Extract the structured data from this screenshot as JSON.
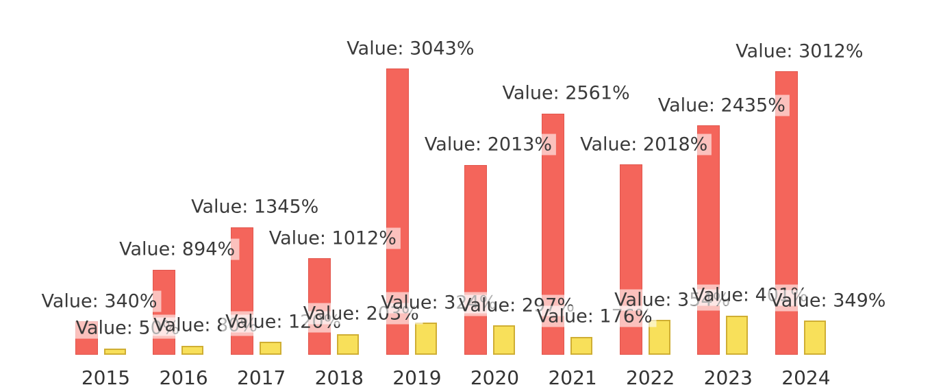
{
  "chart_data": {
    "type": "bar",
    "categories": [
      "2015",
      "2016",
      "2017",
      "2018",
      "2019",
      "2020",
      "2021",
      "2022",
      "2023",
      "2024"
    ],
    "series": [
      {
        "name": "red",
        "color": "#f4655b",
        "edge_color": "#e1554c",
        "values": [
          340,
          894,
          1345,
          1012,
          3043,
          2013,
          2561,
          2018,
          2435,
          3012
        ]
      },
      {
        "name": "yellow",
        "color": "#f8e05a",
        "edge_color": "#cfae33",
        "values": [
          50,
          80,
          120,
          203,
          324,
          297,
          176,
          354,
          401,
          349
        ]
      }
    ],
    "value_label_format": "Value: {value}%",
    "title": "",
    "xlabel": "",
    "ylabel": "",
    "legend": "none",
    "grid": false,
    "axes_visible": false,
    "value_label_color": "#3a3a3a",
    "tick_label_color": "#333333",
    "value_label_bbox_color": "rgba(255,255,255,0.6)"
  }
}
